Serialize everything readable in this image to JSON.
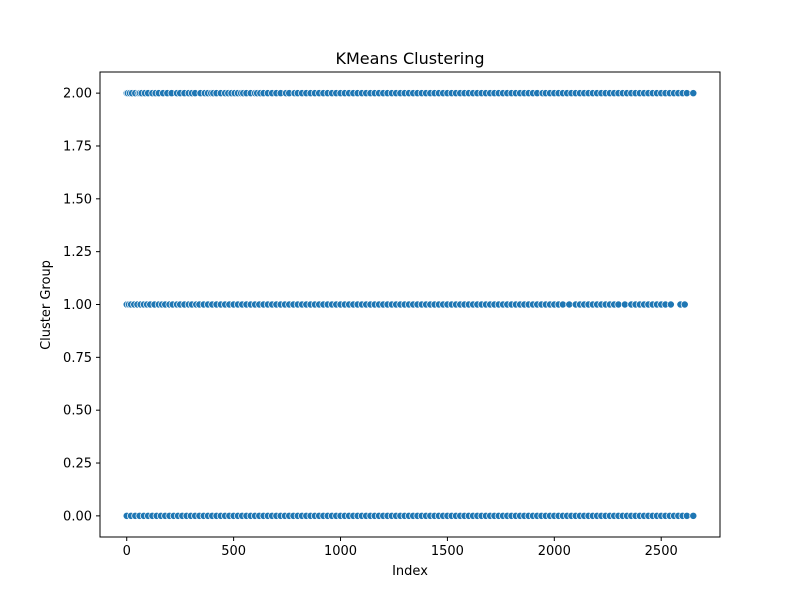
{
  "chart_data": {
    "type": "scatter",
    "title": "KMeans Clustering",
    "xlabel": "Index",
    "ylabel": "Cluster Group",
    "xlim": [
      -125,
      2775
    ],
    "ylim": [
      -0.1,
      2.1
    ],
    "x_ticks": [
      0,
      500,
      1000,
      1500,
      2000,
      2500
    ],
    "x_tick_labels": [
      "0",
      "500",
      "1000",
      "1500",
      "2000",
      "2500"
    ],
    "y_ticks": [
      0.0,
      0.25,
      0.5,
      0.75,
      1.0,
      1.25,
      1.5,
      1.75,
      2.0
    ],
    "y_tick_labels": [
      "0.00",
      "0.25",
      "0.50",
      "0.75",
      "1.00",
      "1.25",
      "1.50",
      "1.75",
      "2.00"
    ],
    "grid": false,
    "legend": "none",
    "marker_color": "#1f77b4",
    "marker_edge_color": "#ffffff",
    "series": [
      {
        "cluster": 2,
        "y": 2,
        "x_range": [
          0,
          2650
        ],
        "x": [
          0,
          5,
          15,
          25,
          40,
          55,
          62,
          70,
          85,
          100,
          120,
          135,
          150,
          170,
          190,
          210,
          235,
          250,
          270,
          290,
          305,
          320,
          345,
          365,
          380,
          395,
          405,
          420,
          440,
          460,
          475,
          490,
          505,
          520,
          535,
          545,
          560,
          580,
          600,
          610,
          625,
          640,
          660,
          680,
          700,
          720,
          745,
          760,
          785,
          800,
          820,
          840,
          860,
          880,
          900,
          920,
          940,
          960,
          980,
          1000,
          1020,
          1040,
          1060,
          1080,
          1100,
          1120,
          1140,
          1160,
          1180,
          1200,
          1220,
          1240,
          1260,
          1280,
          1300,
          1320,
          1340,
          1360,
          1380,
          1400,
          1420,
          1440,
          1460,
          1480,
          1500,
          1520,
          1540,
          1560,
          1580,
          1600,
          1620,
          1640,
          1660,
          1680,
          1700,
          1720,
          1740,
          1760,
          1780,
          1800,
          1820,
          1840,
          1860,
          1880,
          1900,
          1920,
          1945,
          1960,
          1980,
          2000,
          2020,
          2040,
          2060,
          2080,
          2100,
          2120,
          2140,
          2160,
          2180,
          2200,
          2220,
          2240,
          2260,
          2280,
          2300,
          2320,
          2340,
          2360,
          2380,
          2400,
          2420,
          2440,
          2460,
          2480,
          2500,
          2520,
          2540,
          2560,
          2580,
          2600,
          2620,
          2650
        ]
      },
      {
        "cluster": 1,
        "y": 1,
        "x_range": [
          0,
          2610
        ],
        "x": [
          0,
          10,
          20,
          35,
          50,
          65,
          80,
          95,
          110,
          130,
          150,
          165,
          180,
          200,
          215,
          235,
          250,
          270,
          290,
          305,
          325,
          340,
          360,
          380,
          400,
          420,
          440,
          460,
          480,
          500,
          520,
          540,
          560,
          580,
          600,
          620,
          640,
          660,
          680,
          700,
          720,
          740,
          760,
          780,
          800,
          820,
          840,
          860,
          880,
          900,
          920,
          940,
          960,
          980,
          1000,
          1020,
          1040,
          1060,
          1080,
          1100,
          1120,
          1140,
          1160,
          1180,
          1200,
          1220,
          1240,
          1260,
          1280,
          1300,
          1320,
          1340,
          1360,
          1380,
          1400,
          1420,
          1440,
          1460,
          1480,
          1500,
          1520,
          1540,
          1560,
          1580,
          1600,
          1620,
          1640,
          1660,
          1680,
          1700,
          1720,
          1740,
          1760,
          1780,
          1800,
          1820,
          1840,
          1860,
          1880,
          1900,
          1920,
          1940,
          1960,
          1980,
          2000,
          2020,
          2040,
          2070,
          2100,
          2120,
          2140,
          2160,
          2180,
          2200,
          2220,
          2240,
          2260,
          2280,
          2300,
          2330,
          2360,
          2380,
          2400,
          2420,
          2440,
          2460,
          2480,
          2500,
          2520,
          2545,
          2590,
          2610
        ]
      },
      {
        "cluster": 0,
        "y": 0,
        "x_range": [
          0,
          2650
        ],
        "x": [
          0,
          20,
          40,
          60,
          80,
          100,
          120,
          140,
          160,
          180,
          200,
          220,
          240,
          260,
          280,
          300,
          320,
          340,
          360,
          380,
          400,
          420,
          440,
          460,
          480,
          500,
          520,
          540,
          560,
          580,
          600,
          620,
          640,
          660,
          680,
          700,
          720,
          740,
          760,
          780,
          800,
          820,
          840,
          860,
          880,
          900,
          920,
          940,
          960,
          980,
          1000,
          1020,
          1040,
          1060,
          1080,
          1100,
          1120,
          1140,
          1160,
          1180,
          1200,
          1220,
          1240,
          1260,
          1280,
          1300,
          1320,
          1340,
          1360,
          1380,
          1400,
          1420,
          1440,
          1460,
          1480,
          1500,
          1520,
          1540,
          1560,
          1580,
          1600,
          1620,
          1640,
          1660,
          1680,
          1700,
          1720,
          1740,
          1760,
          1780,
          1800,
          1820,
          1840,
          1860,
          1880,
          1900,
          1920,
          1940,
          1960,
          1980,
          2000,
          2020,
          2040,
          2060,
          2080,
          2100,
          2120,
          2140,
          2160,
          2180,
          2200,
          2220,
          2240,
          2260,
          2280,
          2300,
          2320,
          2340,
          2360,
          2380,
          2400,
          2420,
          2440,
          2460,
          2480,
          2500,
          2520,
          2540,
          2560,
          2580,
          2600,
          2620,
          2650
        ]
      }
    ]
  }
}
